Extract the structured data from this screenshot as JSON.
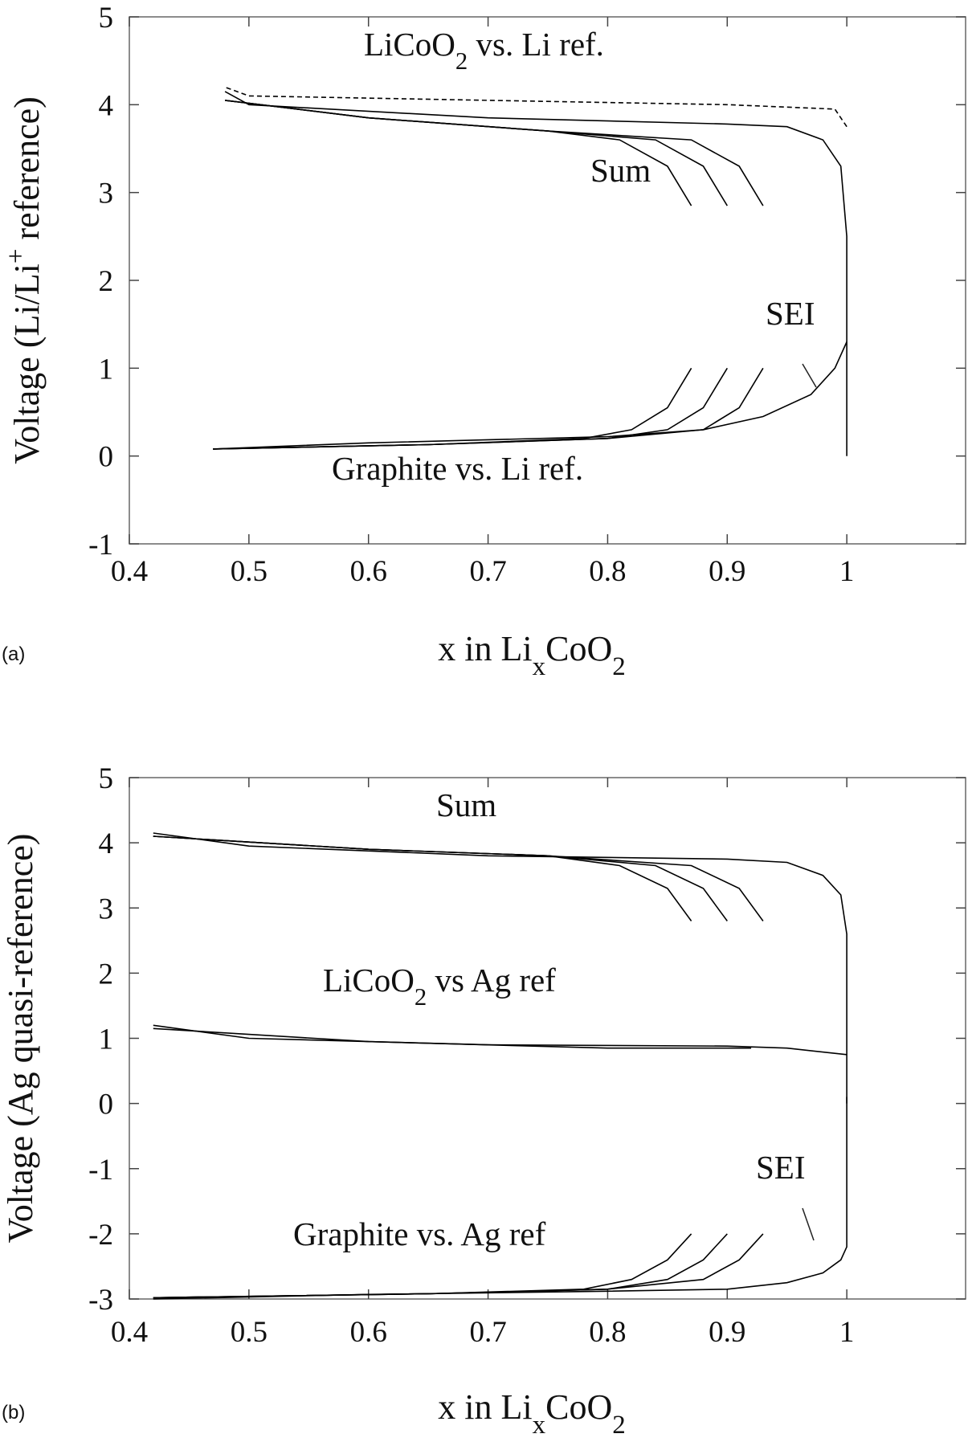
{
  "chart_data": [
    {
      "type": "line",
      "panel_label": "(a)",
      "x_label": [
        "x in Li",
        "x",
        "CoO",
        "2"
      ],
      "y_label": [
        "Voltage (Li/Li",
        "+",
        " reference)"
      ],
      "annotations": [
        [
          "LiCoO",
          "2",
          " vs. Li ref."
        ],
        [
          "Sum"
        ],
        [
          "SEI"
        ],
        [
          "Graphite vs. Li ref."
        ]
      ],
      "xlim": [
        0.4,
        1.1
      ],
      "xticks": [
        0.4,
        0.5,
        0.6,
        0.7,
        0.8,
        0.9,
        1
      ],
      "ylim": [
        -1,
        5
      ],
      "yticks": [
        -1,
        0,
        1,
        2,
        3,
        4,
        5
      ],
      "series": [
        {
          "color": "#000000",
          "dash": true,
          "x": [
            1,
            0.99,
            0.9,
            0.7,
            0.5,
            0.48
          ],
          "values": [
            3.75,
            3.95,
            4.0,
            4.05,
            4.1,
            4.2
          ]
        },
        {
          "color": "#000000",
          "x": [
            1,
            1,
            0.995,
            0.98,
            0.95,
            0.9,
            0.7,
            0.5,
            0.48
          ],
          "values": [
            0,
            2.5,
            3.3,
            3.6,
            3.75,
            3.78,
            3.85,
            4.0,
            4.15
          ]
        },
        {
          "color": "#000000",
          "x": [
            0.48,
            0.6,
            0.75,
            0.87,
            0.91,
            0.93
          ],
          "values": [
            4.05,
            3.85,
            3.7,
            3.6,
            3.3,
            2.85
          ]
        },
        {
          "color": "#000000",
          "x": [
            0.48,
            0.6,
            0.75,
            0.84,
            0.88,
            0.9
          ],
          "values": [
            4.05,
            3.85,
            3.7,
            3.6,
            3.3,
            2.85
          ]
        },
        {
          "color": "#000000",
          "x": [
            0.48,
            0.6,
            0.75,
            0.81,
            0.85,
            0.87
          ],
          "values": [
            4.05,
            3.85,
            3.7,
            3.6,
            3.3,
            2.85
          ]
        },
        {
          "color": "#000000",
          "x": [
            1,
            0.99,
            0.97,
            0.93,
            0.88,
            0.8,
            0.6,
            0.47
          ],
          "values": [
            1.3,
            1.0,
            0.7,
            0.45,
            0.3,
            0.22,
            0.15,
            0.08
          ]
        },
        {
          "color": "#000000",
          "x": [
            0.47,
            0.65,
            0.8,
            0.88,
            0.91,
            0.93
          ],
          "values": [
            0.08,
            0.13,
            0.2,
            0.3,
            0.55,
            1.0
          ]
        },
        {
          "color": "#000000",
          "x": [
            0.47,
            0.65,
            0.8,
            0.85,
            0.88,
            0.9
          ],
          "values": [
            0.08,
            0.13,
            0.2,
            0.3,
            0.55,
            1.0
          ]
        },
        {
          "color": "#000000",
          "x": [
            0.47,
            0.65,
            0.78,
            0.82,
            0.85,
            0.87
          ],
          "values": [
            0.08,
            0.13,
            0.2,
            0.3,
            0.55,
            1.0
          ]
        }
      ]
    },
    {
      "type": "line",
      "panel_label": "(b)",
      "x_label": [
        "x in Li",
        "x",
        "CoO",
        "2"
      ],
      "y_label": [
        "Voltage (Ag quasi-reference)"
      ],
      "annotations": [
        [
          "Sum"
        ],
        [
          "LiCoO",
          "2",
          " vs Ag ref"
        ],
        [
          "SEI"
        ],
        [
          "Graphite vs. Ag ref"
        ]
      ],
      "xlim": [
        0.4,
        1.1
      ],
      "xticks": [
        0.4,
        0.5,
        0.6,
        0.7,
        0.8,
        0.9,
        1
      ],
      "ylim": [
        -3,
        5
      ],
      "yticks": [
        -3,
        -2,
        -1,
        0,
        1,
        2,
        3,
        4,
        5
      ],
      "series": [
        {
          "color": "#000000",
          "x": [
            1,
            1,
            0.995,
            0.98,
            0.95,
            0.9,
            0.7,
            0.5,
            0.42
          ],
          "values": [
            0,
            2.6,
            3.2,
            3.5,
            3.7,
            3.75,
            3.8,
            3.95,
            4.15
          ]
        },
        {
          "color": "#000000",
          "x": [
            0.42,
            0.6,
            0.75,
            0.87,
            0.91,
            0.93
          ],
          "values": [
            4.1,
            3.9,
            3.8,
            3.65,
            3.3,
            2.8
          ]
        },
        {
          "color": "#000000",
          "x": [
            0.42,
            0.6,
            0.75,
            0.84,
            0.88,
            0.9
          ],
          "values": [
            4.1,
            3.9,
            3.8,
            3.65,
            3.3,
            2.8
          ]
        },
        {
          "color": "#000000",
          "x": [
            0.42,
            0.6,
            0.75,
            0.81,
            0.85,
            0.87
          ],
          "values": [
            4.1,
            3.9,
            3.8,
            3.65,
            3.3,
            2.8
          ]
        },
        {
          "color": "#000000",
          "x": [
            1,
            0.95,
            0.9,
            0.7,
            0.5,
            0.42
          ],
          "values": [
            0.75,
            0.85,
            0.88,
            0.9,
            1.0,
            1.2
          ]
        },
        {
          "color": "#000000",
          "x": [
            0.42,
            0.6,
            0.8,
            0.92
          ],
          "values": [
            1.15,
            0.95,
            0.85,
            0.85
          ]
        },
        {
          "color": "#000000",
          "x": [
            1,
            1,
            0.995,
            0.98,
            0.95,
            0.9,
            0.8,
            0.6,
            0.42
          ],
          "values": [
            0.1,
            -2.2,
            -2.4,
            -2.6,
            -2.75,
            -2.85,
            -2.88,
            -2.93,
            -3.0
          ]
        },
        {
          "color": "#000000",
          "x": [
            0.42,
            0.65,
            0.8,
            0.88,
            0.91,
            0.93
          ],
          "values": [
            -2.98,
            -2.92,
            -2.85,
            -2.7,
            -2.4,
            -2.0
          ]
        },
        {
          "color": "#000000",
          "x": [
            0.42,
            0.65,
            0.8,
            0.85,
            0.88,
            0.9
          ],
          "values": [
            -2.98,
            -2.92,
            -2.85,
            -2.7,
            -2.4,
            -2.0
          ]
        },
        {
          "color": "#000000",
          "x": [
            0.42,
            0.65,
            0.78,
            0.82,
            0.85,
            0.87
          ],
          "values": [
            -2.98,
            -2.92,
            -2.85,
            -2.7,
            -2.4,
            -2.0
          ]
        }
      ]
    }
  ]
}
